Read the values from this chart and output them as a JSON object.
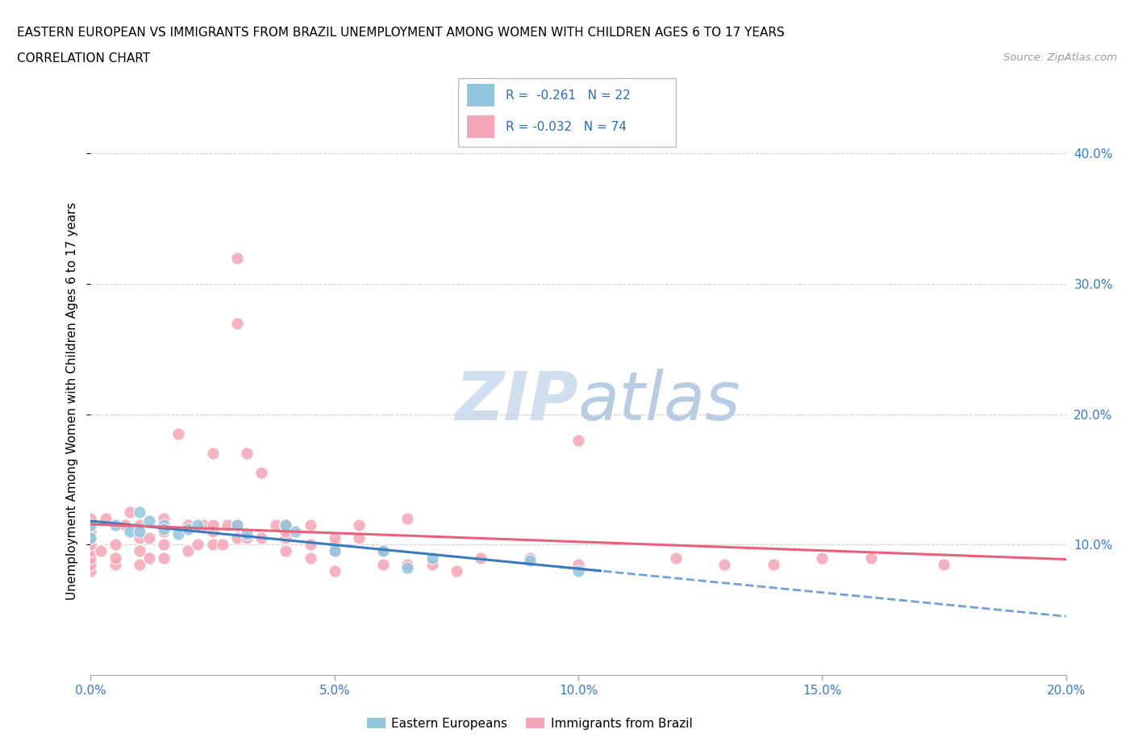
{
  "title_line1": "EASTERN EUROPEAN VS IMMIGRANTS FROM BRAZIL UNEMPLOYMENT AMONG WOMEN WITH CHILDREN AGES 6 TO 17 YEARS",
  "title_line2": "CORRELATION CHART",
  "source_text": "Source: ZipAtlas.com",
  "ylabel": "Unemployment Among Women with Children Ages 6 to 17 years",
  "xlim": [
    0.0,
    0.2
  ],
  "ylim": [
    0.0,
    0.42
  ],
  "xtick_vals": [
    0.0,
    0.05,
    0.1,
    0.15,
    0.2
  ],
  "ytick_vals": [
    0.1,
    0.2,
    0.3,
    0.4
  ],
  "blue_color": "#92c5de",
  "pink_color": "#f4a6b8",
  "trendline_blue_color": "#3a7abf",
  "trendline_pink_color": "#e8607a",
  "watermark_color": "#d0dff0",
  "grid_color": "#cccccc",
  "tick_label_color": "#3a7abf",
  "legend_R_color": "#2b6cb0",
  "blue_R": -0.261,
  "blue_N": 22,
  "pink_R": -0.032,
  "pink_N": 74,
  "blue_points_x": [
    0.0,
    0.0,
    0.005,
    0.008,
    0.01,
    0.01,
    0.012,
    0.015,
    0.015,
    0.018,
    0.02,
    0.022,
    0.03,
    0.032,
    0.04,
    0.042,
    0.05,
    0.06,
    0.065,
    0.07,
    0.09,
    0.1
  ],
  "blue_points_y": [
    0.115,
    0.105,
    0.115,
    0.11,
    0.125,
    0.11,
    0.118,
    0.115,
    0.112,
    0.108,
    0.112,
    0.115,
    0.115,
    0.108,
    0.115,
    0.11,
    0.095,
    0.095,
    0.082,
    0.09,
    0.088,
    0.08
  ],
  "pink_points_x": [
    0.0,
    0.0,
    0.0,
    0.0,
    0.0,
    0.0,
    0.0,
    0.0,
    0.002,
    0.003,
    0.005,
    0.005,
    0.005,
    0.007,
    0.008,
    0.01,
    0.01,
    0.01,
    0.01,
    0.012,
    0.012,
    0.015,
    0.015,
    0.015,
    0.015,
    0.018,
    0.02,
    0.02,
    0.022,
    0.023,
    0.025,
    0.025,
    0.025,
    0.025,
    0.027,
    0.028,
    0.03,
    0.03,
    0.03,
    0.03,
    0.032,
    0.032,
    0.035,
    0.035,
    0.038,
    0.04,
    0.04,
    0.04,
    0.04,
    0.045,
    0.045,
    0.045,
    0.05,
    0.05,
    0.05,
    0.05,
    0.055,
    0.055,
    0.06,
    0.06,
    0.065,
    0.065,
    0.07,
    0.075,
    0.08,
    0.09,
    0.1,
    0.1,
    0.12,
    0.13,
    0.14,
    0.15,
    0.16,
    0.175
  ],
  "pink_points_y": [
    0.08,
    0.085,
    0.09,
    0.095,
    0.1,
    0.105,
    0.11,
    0.12,
    0.095,
    0.12,
    0.085,
    0.09,
    0.1,
    0.115,
    0.125,
    0.085,
    0.095,
    0.105,
    0.115,
    0.09,
    0.105,
    0.09,
    0.1,
    0.11,
    0.12,
    0.185,
    0.095,
    0.115,
    0.1,
    0.115,
    0.1,
    0.11,
    0.115,
    0.17,
    0.1,
    0.115,
    0.105,
    0.115,
    0.27,
    0.32,
    0.105,
    0.17,
    0.105,
    0.155,
    0.115,
    0.105,
    0.11,
    0.115,
    0.095,
    0.09,
    0.1,
    0.115,
    0.095,
    0.1,
    0.105,
    0.08,
    0.105,
    0.115,
    0.085,
    0.095,
    0.12,
    0.085,
    0.085,
    0.08,
    0.09,
    0.09,
    0.085,
    0.18,
    0.09,
    0.085,
    0.085,
    0.09,
    0.09,
    0.085
  ]
}
